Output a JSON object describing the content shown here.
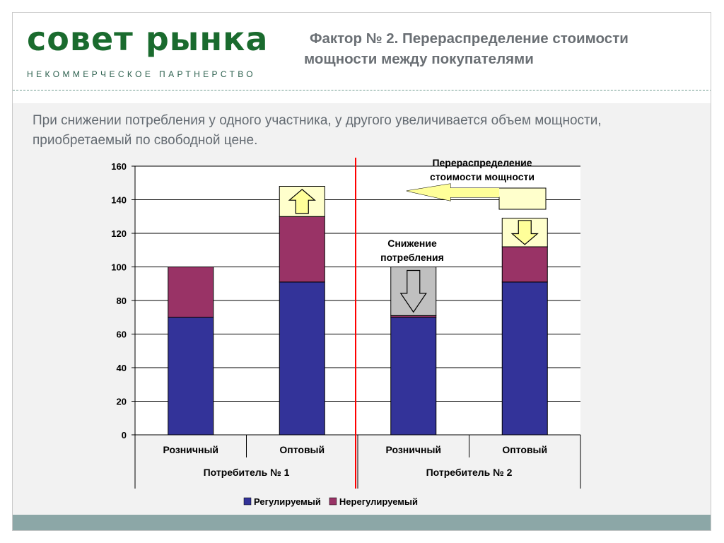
{
  "header": {
    "brand": "совет рынка",
    "brand_sub": "НЕКОММЕРЧЕСКОЕ ПАРТНЕРСТВО",
    "title": "Фактор № 2. Перераспределение стоимости мощности между покупателями"
  },
  "intro_text": "При снижении потребления у одного участника, у другого увеличивается объем мощности, приобретаемый по свободной цене.",
  "colors": {
    "regulated": "#333399",
    "unregulated": "#993366",
    "increase": "#ffffcc",
    "decrease": "#c0c0c0",
    "divider": "#ff0000",
    "brand": "#1a6b2e",
    "footer": "#8ca7a7"
  },
  "chart_data": {
    "type": "bar",
    "stacked": true,
    "ylim": [
      0,
      160
    ],
    "yticks": [
      "0",
      "20",
      "40",
      "60",
      "80",
      "100",
      "120",
      "140",
      "160"
    ],
    "categories": [
      "Розничный",
      "Оптовый",
      "Розничный",
      "Оптовый"
    ],
    "groups": [
      {
        "label": "Потребитель № 1",
        "categories": [
          0,
          1
        ]
      },
      {
        "label": "Потребитель № 2",
        "categories": [
          2,
          3
        ]
      }
    ],
    "series": [
      {
        "name": "Регулируемый",
        "color": "#333399",
        "values": [
          70,
          91,
          70,
          91
        ]
      },
      {
        "name": "Нерегулируемый",
        "color": "#993366",
        "values": [
          30,
          39,
          1,
          21
        ]
      },
      {
        "name": "",
        "color": "#ffffcc",
        "values": [
          0,
          18,
          0,
          17
        ]
      },
      {
        "name": "",
        "color": "#c0c0c0",
        "values": [
          0,
          0,
          29,
          0
        ]
      }
    ],
    "annotations": [
      {
        "text": "Перераспределение стоимости мощности",
        "arrow": "left"
      },
      {
        "text": "Снижение потребления",
        "arrow": "down"
      }
    ],
    "legend": [
      "Регулируемый",
      "Нерегулируемый"
    ],
    "legend_position": "bottom",
    "grid": true
  }
}
